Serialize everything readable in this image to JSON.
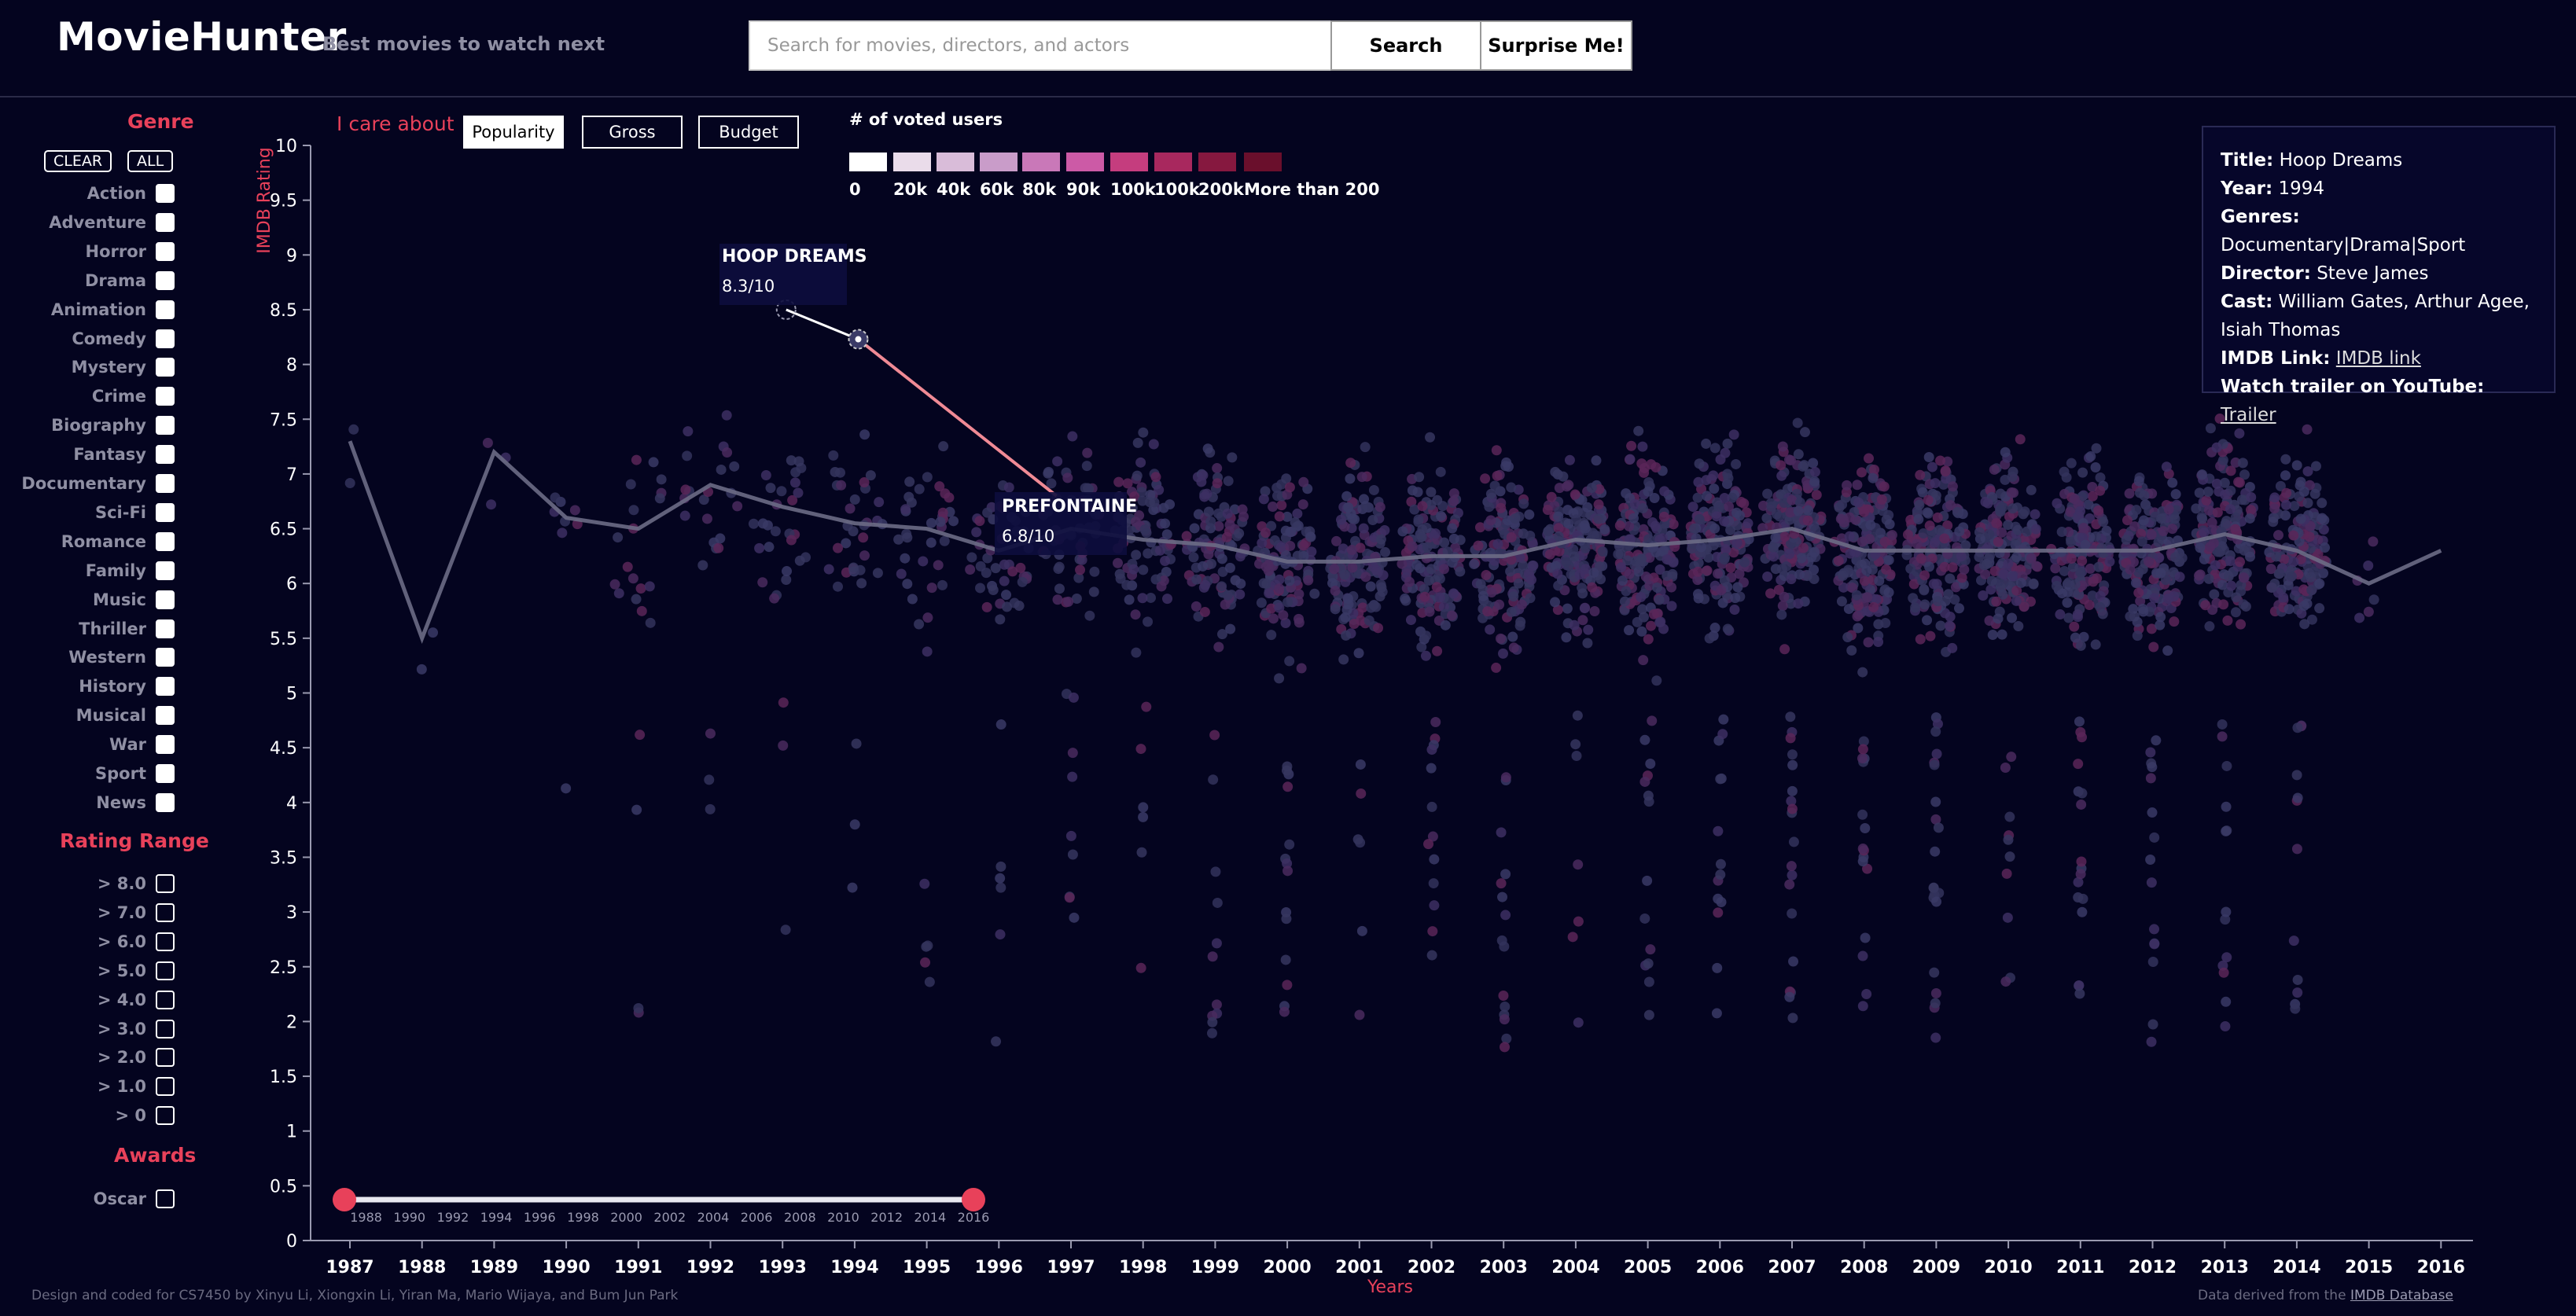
{
  "header": {
    "title": "MovieHunter",
    "tagline": "Best movies to watch next",
    "search_placeholder": "Search for movies, directors, and actors",
    "search_value": "",
    "search_button": "Search",
    "surprise_button": "Surprise Me!"
  },
  "sidebar": {
    "genre_title": "Genre",
    "clear_label": "CLEAR",
    "all_label": "ALL",
    "genres": [
      "Action",
      "Adventure",
      "Horror",
      "Drama",
      "Animation",
      "Comedy",
      "Mystery",
      "Crime",
      "Biography",
      "Fantasy",
      "Documentary",
      "Sci-Fi",
      "Romance",
      "Family",
      "Music",
      "Thriller",
      "Western",
      "History",
      "Musical",
      "War",
      "Sport",
      "News"
    ],
    "rating_title": "Rating Range",
    "ratings": [
      "> 8.0",
      "> 7.0",
      "> 6.0",
      "> 5.0",
      "> 4.0",
      "> 3.0",
      "> 2.0",
      "> 1.0",
      "> 0"
    ],
    "awards_title": "Awards",
    "awards": [
      "Oscar"
    ]
  },
  "controls": {
    "care_label": "I care about",
    "options": [
      "Popularity",
      "Gross",
      "Budget"
    ],
    "active": "Popularity"
  },
  "legend": {
    "title": "# of voted users",
    "labels": [
      "0",
      "20k",
      "40k",
      "60k",
      "80k",
      "90k",
      "100k",
      "100k",
      "200k",
      "More than 200k"
    ],
    "colors": [
      "#ffffff",
      "#eadcea",
      "#d9bcd9",
      "#c99cc9",
      "#c978b8",
      "#cc5aa6",
      "#c53d7e",
      "#a8285e",
      "#86183f",
      "#6a0f2c"
    ]
  },
  "info": {
    "title_label": "Title:",
    "title": "Hoop Dreams",
    "year_label": "Year:",
    "year": "1994",
    "genres_label": "Genres:",
    "genres": "Documentary|Drama|Sport",
    "director_label": "Director:",
    "director": "Steve James",
    "cast_label": "Cast:",
    "cast": "William Gates, Arthur Agee, Isiah Thomas",
    "imdb_label": "IMDB Link:",
    "imdb_link": "IMDB link",
    "trailer_label": "Watch trailer on YouTube:",
    "trailer_link": "Trailer"
  },
  "chart_data": {
    "type": "scatter",
    "ylabel": "IMDB Rating",
    "xlabel": "Years",
    "ylim": [
      0,
      10
    ],
    "yticks": [
      "0",
      "0.5",
      "1",
      "1.5",
      "2",
      "2.5",
      "3",
      "3.5",
      "4",
      "4.5",
      "5",
      "5.5",
      "6",
      "6.5",
      "7",
      "7.5",
      "8",
      "8.5",
      "9",
      "9.5",
      "10"
    ],
    "x": [
      1987,
      1988,
      1989,
      1990,
      1991,
      1992,
      1993,
      1994,
      1995,
      1996,
      1997,
      1998,
      1999,
      2000,
      2001,
      2002,
      2003,
      2004,
      2005,
      2006,
      2007,
      2008,
      2009,
      2010,
      2011,
      2012,
      2013,
      2014,
      2015,
      2016
    ],
    "series": [
      {
        "name": "",
        "values": [
          7.3,
          5.5,
          7.2,
          6.6,
          6.5,
          6.9,
          6.7,
          6.55,
          6.5,
          6.3,
          6.5,
          6.4,
          6.35,
          6.2,
          6.2,
          6.25,
          6.25,
          6.4,
          6.35,
          6.4,
          6.5,
          6.3,
          6.3,
          6.3,
          6.3,
          6.3,
          6.45,
          6.3,
          6.0,
          6.3
        ]
      }
    ],
    "annotations": [
      {
        "title": "HOOP DREAMS",
        "rating": "8.3/10"
      },
      {
        "title": "PREFONTAINE",
        "rating": "6.8/10"
      }
    ],
    "year_slider": {
      "range": [
        1987,
        2016
      ],
      "selected": [
        1987,
        2016
      ],
      "labels": [
        "1988",
        "1990",
        "1992",
        "1994",
        "1996",
        "1998",
        "2000",
        "2002",
        "2004",
        "2006",
        "2008",
        "2010",
        "2012",
        "2014",
        "2016"
      ]
    }
  },
  "footer": {
    "credits": "Design and coded for CS7450 by Xinyu Li, Xiongxin Li, Yiran Ma, Mario Wijaya, and Bum Jun Park",
    "source_prefix": "Data derived from the",
    "source_link": "IMDB Database"
  }
}
